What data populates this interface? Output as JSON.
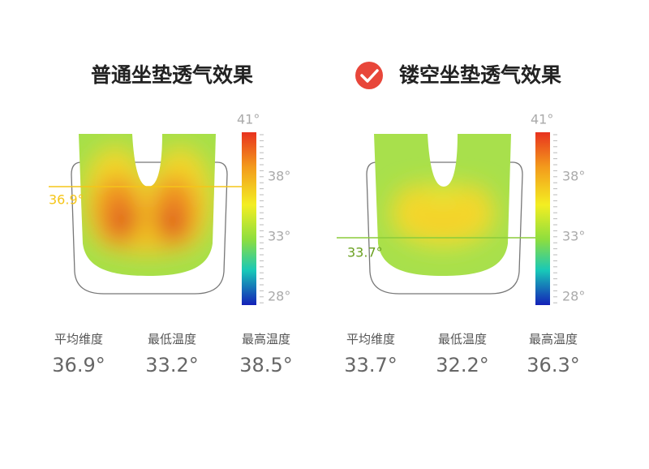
{
  "panels": [
    {
      "title": "普通坐垫透气效果",
      "scale": [
        "41°",
        "38°",
        "33°",
        "28°"
      ],
      "marker": "36.9°",
      "stats": [
        {
          "label": "平均维度",
          "value": "36.9°"
        },
        {
          "label": "最低温度",
          "value": "33.2°"
        },
        {
          "label": "最高温度",
          "value": "38.5°"
        }
      ]
    },
    {
      "title": "镂空坐垫透气效果",
      "scale": [
        "41°",
        "38°",
        "33°",
        "28°"
      ],
      "marker": "33.7°",
      "stats": [
        {
          "label": "平均维度",
          "value": "33.7°"
        },
        {
          "label": "最低温度",
          "value": "32.2°"
        },
        {
          "label": "最高温度",
          "value": "36.3°"
        }
      ]
    }
  ]
}
